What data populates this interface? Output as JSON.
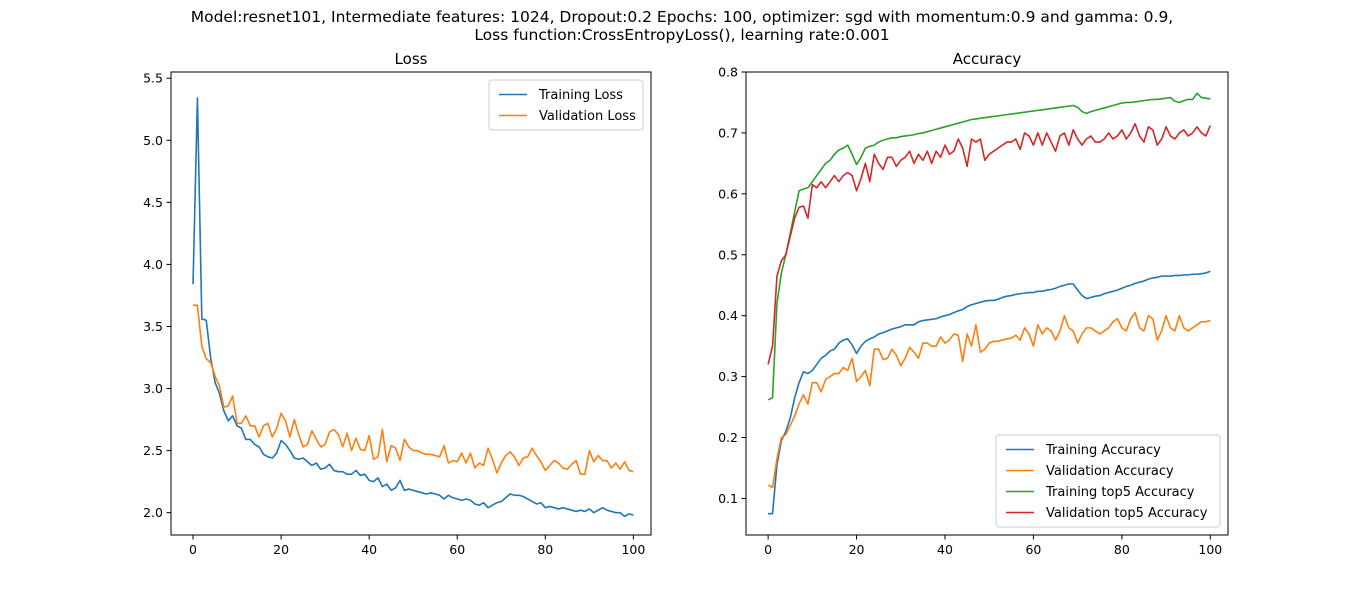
{
  "figure": {
    "title_line1": "Model:resnet101, Intermediate features: 1024, Dropout:0.2 Epochs: 100, optimizer: sgd with momentum:0.9 and gamma: 0.9,",
    "title_line2": "Loss function:CrossEntropyLoss(), learning rate:0.001"
  },
  "chart_data": [
    {
      "type": "line",
      "title": "Loss",
      "xlabel": "",
      "ylabel": "",
      "xlim": [
        -5,
        104
      ],
      "ylim": [
        1.82,
        5.55
      ],
      "xticks": [
        0,
        20,
        40,
        60,
        80,
        100
      ],
      "yticks": [
        2.0,
        2.5,
        3.0,
        3.5,
        4.0,
        4.5,
        5.0,
        5.5
      ],
      "ytick_decimals": 1,
      "grid": false,
      "legend": "top-right",
      "series": [
        {
          "name": "Training Loss",
          "color": "#1f77b4",
          "values": [
            3.84,
            5.34,
            3.56,
            3.55,
            3.25,
            3.05,
            2.96,
            2.82,
            2.74,
            2.78,
            2.7,
            2.68,
            2.59,
            2.59,
            2.55,
            2.53,
            2.47,
            2.45,
            2.44,
            2.48,
            2.58,
            2.55,
            2.5,
            2.44,
            2.43,
            2.44,
            2.41,
            2.38,
            2.4,
            2.35,
            2.36,
            2.39,
            2.34,
            2.33,
            2.33,
            2.31,
            2.31,
            2.34,
            2.3,
            2.31,
            2.26,
            2.25,
            2.28,
            2.21,
            2.23,
            2.18,
            2.2,
            2.26,
            2.18,
            2.19,
            2.18,
            2.17,
            2.16,
            2.15,
            2.16,
            2.15,
            2.14,
            2.11,
            2.14,
            2.12,
            2.11,
            2.1,
            2.11,
            2.1,
            2.07,
            2.06,
            2.08,
            2.04,
            2.06,
            2.08,
            2.09,
            2.12,
            2.15,
            2.14,
            2.14,
            2.13,
            2.11,
            2.09,
            2.07,
            2.08,
            2.04,
            2.05,
            2.04,
            2.03,
            2.04,
            2.03,
            2.02,
            2.01,
            2.02,
            2.01,
            2.03,
            2.0,
            2.02,
            2.04,
            2.02,
            2.01,
            2.0,
            2.0,
            1.97,
            1.99,
            1.98
          ]
        },
        {
          "name": "Validation Loss",
          "color": "#ff7f0e",
          "values": [
            3.67,
            3.67,
            3.34,
            3.24,
            3.21,
            3.1,
            3.02,
            2.85,
            2.86,
            2.94,
            2.72,
            2.72,
            2.78,
            2.7,
            2.7,
            2.61,
            2.7,
            2.72,
            2.61,
            2.68,
            2.8,
            2.74,
            2.61,
            2.75,
            2.63,
            2.53,
            2.55,
            2.66,
            2.59,
            2.53,
            2.55,
            2.65,
            2.67,
            2.63,
            2.53,
            2.64,
            2.5,
            2.6,
            2.51,
            2.5,
            2.62,
            2.43,
            2.45,
            2.67,
            2.41,
            2.54,
            2.52,
            2.42,
            2.59,
            2.53,
            2.5,
            2.5,
            2.48,
            2.47,
            2.47,
            2.46,
            2.45,
            2.54,
            2.4,
            2.42,
            2.41,
            2.48,
            2.4,
            2.48,
            2.36,
            2.4,
            2.38,
            2.52,
            2.43,
            2.32,
            2.4,
            2.46,
            2.49,
            2.45,
            2.38,
            2.44,
            2.45,
            2.52,
            2.46,
            2.41,
            2.34,
            2.38,
            2.42,
            2.4,
            2.36,
            2.35,
            2.39,
            2.42,
            2.31,
            2.31,
            2.5,
            2.41,
            2.46,
            2.42,
            2.42,
            2.36,
            2.4,
            2.35,
            2.41,
            2.34,
            2.33
          ]
        }
      ]
    },
    {
      "type": "line",
      "title": "Accuracy",
      "xlabel": "",
      "ylabel": "",
      "xlim": [
        -5,
        104
      ],
      "ylim": [
        0.04,
        0.8
      ],
      "xticks": [
        0,
        20,
        40,
        60,
        80,
        100
      ],
      "yticks": [
        0.1,
        0.2,
        0.3,
        0.4,
        0.5,
        0.6,
        0.7,
        0.8
      ],
      "ytick_decimals": 1,
      "grid": false,
      "legend": "bottom-right",
      "series": [
        {
          "name": "Training Accuracy",
          "color": "#1f77b4",
          "values": [
            0.075,
            0.075,
            0.155,
            0.195,
            0.21,
            0.232,
            0.265,
            0.29,
            0.308,
            0.305,
            0.31,
            0.32,
            0.33,
            0.335,
            0.342,
            0.345,
            0.355,
            0.36,
            0.362,
            0.352,
            0.338,
            0.35,
            0.358,
            0.362,
            0.365,
            0.37,
            0.372,
            0.375,
            0.378,
            0.38,
            0.382,
            0.385,
            0.385,
            0.385,
            0.39,
            0.392,
            0.393,
            0.394,
            0.395,
            0.398,
            0.4,
            0.402,
            0.405,
            0.408,
            0.41,
            0.415,
            0.418,
            0.42,
            0.422,
            0.424,
            0.425,
            0.425,
            0.427,
            0.43,
            0.432,
            0.433,
            0.435,
            0.436,
            0.437,
            0.438,
            0.438,
            0.44,
            0.44,
            0.442,
            0.443,
            0.445,
            0.448,
            0.45,
            0.452,
            0.452,
            0.442,
            0.433,
            0.428,
            0.43,
            0.432,
            0.433,
            0.436,
            0.438,
            0.44,
            0.442,
            0.445,
            0.448,
            0.45,
            0.453,
            0.455,
            0.457,
            0.46,
            0.462,
            0.463,
            0.465,
            0.465,
            0.465,
            0.466,
            0.466,
            0.467,
            0.467,
            0.468,
            0.468,
            0.469,
            0.47,
            0.473
          ]
        },
        {
          "name": "Validation Accuracy",
          "color": "#ff7f0e",
          "values": [
            0.122,
            0.118,
            0.165,
            0.2,
            0.205,
            0.22,
            0.235,
            0.255,
            0.27,
            0.255,
            0.29,
            0.29,
            0.275,
            0.295,
            0.3,
            0.305,
            0.305,
            0.315,
            0.31,
            0.33,
            0.292,
            0.3,
            0.31,
            0.285,
            0.345,
            0.345,
            0.328,
            0.33,
            0.345,
            0.335,
            0.318,
            0.33,
            0.348,
            0.34,
            0.33,
            0.355,
            0.355,
            0.35,
            0.35,
            0.365,
            0.355,
            0.36,
            0.37,
            0.368,
            0.325,
            0.37,
            0.35,
            0.385,
            0.34,
            0.345,
            0.355,
            0.358,
            0.358,
            0.36,
            0.362,
            0.363,
            0.368,
            0.36,
            0.38,
            0.37,
            0.35,
            0.385,
            0.37,
            0.38,
            0.375,
            0.36,
            0.375,
            0.4,
            0.38,
            0.375,
            0.355,
            0.37,
            0.38,
            0.38,
            0.375,
            0.37,
            0.375,
            0.38,
            0.39,
            0.395,
            0.38,
            0.375,
            0.395,
            0.405,
            0.38,
            0.375,
            0.4,
            0.395,
            0.36,
            0.375,
            0.4,
            0.38,
            0.375,
            0.4,
            0.38,
            0.375,
            0.38,
            0.385,
            0.39,
            0.39,
            0.392
          ]
        },
        {
          "name": "Training top5 Accuracy",
          "color": "#2ca02c",
          "values": [
            0.262,
            0.265,
            0.42,
            0.47,
            0.5,
            0.535,
            0.57,
            0.605,
            0.608,
            0.61,
            0.62,
            0.63,
            0.64,
            0.65,
            0.655,
            0.665,
            0.672,
            0.675,
            0.68,
            0.665,
            0.648,
            0.66,
            0.675,
            0.678,
            0.68,
            0.685,
            0.688,
            0.69,
            0.692,
            0.692,
            0.694,
            0.695,
            0.696,
            0.697,
            0.699,
            0.7,
            0.702,
            0.704,
            0.706,
            0.708,
            0.71,
            0.712,
            0.714,
            0.716,
            0.718,
            0.72,
            0.722,
            0.723,
            0.724,
            0.725,
            0.726,
            0.727,
            0.728,
            0.729,
            0.73,
            0.731,
            0.732,
            0.733,
            0.734,
            0.735,
            0.736,
            0.737,
            0.738,
            0.739,
            0.74,
            0.741,
            0.742,
            0.743,
            0.744,
            0.745,
            0.742,
            0.735,
            0.732,
            0.735,
            0.737,
            0.739,
            0.741,
            0.743,
            0.745,
            0.747,
            0.749,
            0.75,
            0.75,
            0.751,
            0.752,
            0.753,
            0.754,
            0.755,
            0.755,
            0.756,
            0.757,
            0.758,
            0.752,
            0.75,
            0.753,
            0.755,
            0.755,
            0.765,
            0.758,
            0.757,
            0.756
          ]
        },
        {
          "name": "Validation top5 Accuracy",
          "color": "#d62728",
          "values": [
            0.32,
            0.35,
            0.465,
            0.49,
            0.5,
            0.53,
            0.56,
            0.578,
            0.58,
            0.56,
            0.615,
            0.61,
            0.62,
            0.61,
            0.62,
            0.63,
            0.62,
            0.63,
            0.635,
            0.63,
            0.605,
            0.625,
            0.65,
            0.62,
            0.665,
            0.65,
            0.64,
            0.66,
            0.66,
            0.645,
            0.655,
            0.66,
            0.67,
            0.65,
            0.665,
            0.655,
            0.67,
            0.65,
            0.67,
            0.66,
            0.68,
            0.665,
            0.67,
            0.69,
            0.675,
            0.645,
            0.69,
            0.685,
            0.69,
            0.655,
            0.665,
            0.67,
            0.675,
            0.68,
            0.685,
            0.685,
            0.69,
            0.673,
            0.7,
            0.695,
            0.68,
            0.7,
            0.68,
            0.7,
            0.685,
            0.67,
            0.695,
            0.7,
            0.68,
            0.705,
            0.69,
            0.68,
            0.69,
            0.695,
            0.685,
            0.685,
            0.69,
            0.7,
            0.69,
            0.695,
            0.705,
            0.69,
            0.7,
            0.715,
            0.695,
            0.685,
            0.71,
            0.705,
            0.68,
            0.69,
            0.71,
            0.695,
            0.69,
            0.7,
            0.705,
            0.695,
            0.7,
            0.71,
            0.7,
            0.695,
            0.712
          ]
        }
      ]
    }
  ]
}
